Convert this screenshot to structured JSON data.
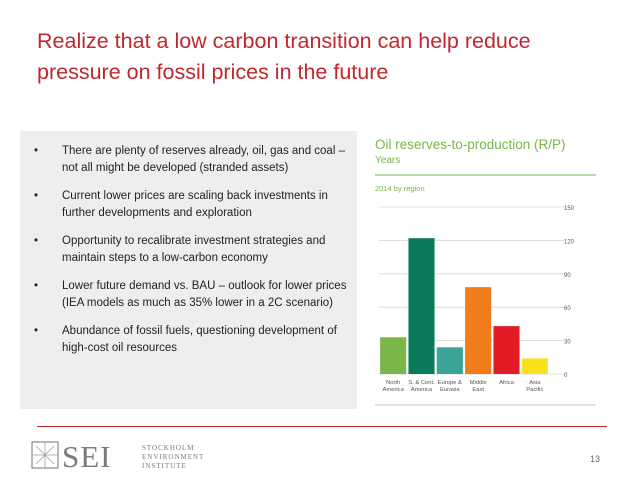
{
  "slide": {
    "title": "Realize that a low carbon transition can help reduce pressure on fossil prices in the future",
    "bullets": [
      "There are plenty of reserves already, oil, gas and coal – not all might be developed (stranded assets)",
      "Current lower prices are scaling back investments in further developments and exploration",
      "Opportunity to recalibrate investment strategies and maintain steps to a low-carbon economy",
      "Lower future demand vs. BAU – outlook for lower prices (IEA models as much as 35% lower in a 2C scenario)",
      "Abundance of fossil fuels, questioning development of high-cost oil resources"
    ],
    "bullet_symbol": "•",
    "page_number": "13"
  },
  "logo": {
    "mark": "SEI",
    "text_lines": [
      "STOCKHOLM",
      "ENVIRONMENT",
      "INSTITUTE"
    ]
  },
  "colors": {
    "title": "#c0282e",
    "rule": "#c0282e",
    "chart_title": "#7ab648",
    "box_bg": "#eeeeee"
  },
  "chart_data": {
    "type": "bar",
    "title": "Oil reserves-to-production (R/P)",
    "subtitle": "Years",
    "annotation": "2014 by region",
    "categories": [
      [
        "North",
        "America"
      ],
      [
        "S. & Cent.",
        "America"
      ],
      [
        "Europe &",
        "Eurasia"
      ],
      [
        "Middle",
        "East"
      ],
      [
        "Africa"
      ],
      [
        "Asia",
        "Pacific"
      ]
    ],
    "values": [
      33,
      122,
      24,
      78,
      43,
      14
    ],
    "bar_colors": [
      "#7ab648",
      "#0a7a5c",
      "#3aa597",
      "#f07c1a",
      "#e21b25",
      "#f9e21c"
    ],
    "y_ticks": [
      0,
      30,
      60,
      90,
      120,
      150
    ],
    "ylim": [
      0,
      150
    ],
    "axis_position": "right",
    "grid": true
  }
}
